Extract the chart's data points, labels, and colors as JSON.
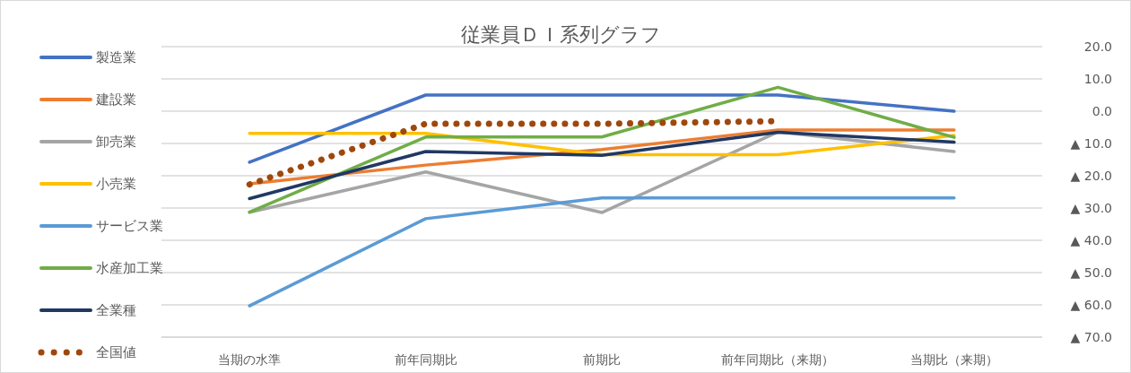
{
  "chart_data": {
    "type": "line",
    "title": "従業員ＤＩ系列グラフ",
    "categories": [
      "当期の水準",
      "前年同期比",
      "前期比",
      "前年同期比（来期）",
      "当期比（来期）"
    ],
    "series": [
      {
        "name": "製造業",
        "color": "#4472c4",
        "values": [
          -15.8,
          5.0,
          5.0,
          5.0,
          0.0
        ]
      },
      {
        "name": "建設業",
        "color": "#ed7d31",
        "values": [
          -22.5,
          -16.7,
          -11.9,
          -5.8,
          -5.8
        ]
      },
      {
        "name": "卸売業",
        "color": "#a5a5a5",
        "values": [
          -31.3,
          -18.8,
          -31.4,
          -6.4,
          -12.5
        ]
      },
      {
        "name": "小売業",
        "color": "#ffc000",
        "values": [
          -6.9,
          -6.9,
          -13.5,
          -13.5,
          -7.5
        ]
      },
      {
        "name": "サービス業",
        "color": "#5b9bd5",
        "values": [
          -60.3,
          -33.3,
          -26.9,
          -26.9,
          -26.9
        ]
      },
      {
        "name": "水産加工業",
        "color": "#70ad47",
        "values": [
          -31.3,
          -8.0,
          -8.0,
          7.4,
          -8.1
        ]
      },
      {
        "name": "全業種",
        "color": "#203864",
        "values": [
          -27.1,
          -12.5,
          -13.7,
          -6.5,
          -9.6
        ]
      },
      {
        "name": "全国値",
        "color": "#9e480e",
        "line_style": "dotted",
        "values": [
          -22.7,
          -3.9,
          -3.9,
          -3.1,
          null
        ]
      }
    ],
    "ylim": [
      -70,
      20
    ],
    "yticks": [
      {
        "value": 20,
        "label": "20.0"
      },
      {
        "value": 10,
        "label": "10.0"
      },
      {
        "value": 0,
        "label": "0.0"
      },
      {
        "value": -10,
        "label": "▲ 10.0"
      },
      {
        "value": -20,
        "label": "▲ 20.0"
      },
      {
        "value": -30,
        "label": "▲ 30.0"
      },
      {
        "value": -40,
        "label": "▲ 40.0"
      },
      {
        "value": -50,
        "label": "▲ 50.0"
      },
      {
        "value": -60,
        "label": "▲ 60.0"
      },
      {
        "value": -70,
        "label": "▲ 70.0"
      }
    ],
    "grid": "y",
    "legend": "left",
    "marker": "none",
    "line_style": "solid"
  }
}
